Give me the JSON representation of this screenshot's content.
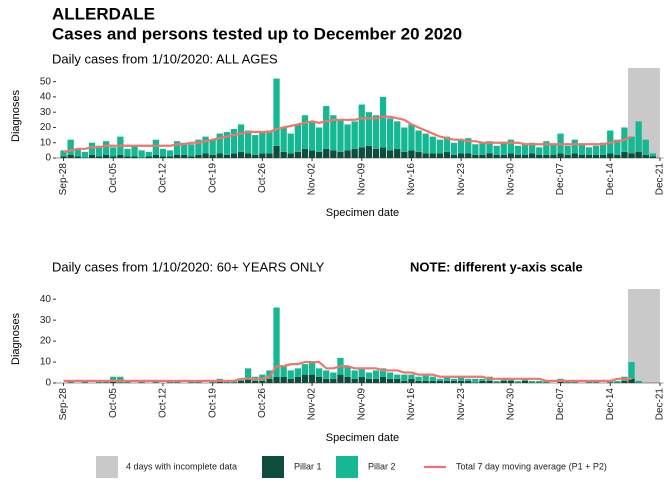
{
  "title": "ALLERDALE",
  "subtitle": "Cases and persons tested up to December 20 2020",
  "chart_data": [
    {
      "type": "bar",
      "stacked": true,
      "title": "Daily cases from 1/10/2020: ALL AGES",
      "xlabel": "Specimen date",
      "ylabel": "Diagnoses",
      "categories": [
        "Sep-28",
        null,
        null,
        null,
        null,
        null,
        null,
        "Oct-05",
        null,
        null,
        null,
        null,
        null,
        null,
        "Oct-12",
        null,
        null,
        null,
        null,
        null,
        null,
        "Oct-19",
        null,
        null,
        null,
        null,
        null,
        null,
        "Oct-26",
        null,
        null,
        null,
        null,
        null,
        null,
        "Nov-02",
        null,
        null,
        null,
        null,
        null,
        null,
        "Nov-09",
        null,
        null,
        null,
        null,
        null,
        null,
        "Nov-16",
        null,
        null,
        null,
        null,
        null,
        null,
        "Nov-23",
        null,
        null,
        null,
        null,
        null,
        null,
        "Nov-30",
        null,
        null,
        null,
        null,
        null,
        null,
        "Dec-07",
        null,
        null,
        null,
        null,
        null,
        null,
        "Dec-14",
        null,
        null,
        null,
        null,
        null,
        null,
        "Dec-21"
      ],
      "series": [
        {
          "name": "Pillar 1",
          "color": "#0e4d3c",
          "values": [
            1,
            2,
            1,
            0,
            2,
            1,
            2,
            1,
            2,
            1,
            1,
            0,
            1,
            2,
            1,
            1,
            2,
            2,
            1,
            2,
            3,
            2,
            3,
            2,
            3,
            4,
            3,
            2,
            3,
            3,
            8,
            4,
            3,
            4,
            6,
            5,
            4,
            6,
            5,
            4,
            5,
            6,
            7,
            8,
            6,
            7,
            5,
            6,
            4,
            5,
            4,
            3,
            3,
            3,
            4,
            2,
            3,
            3,
            2,
            2,
            3,
            2,
            2,
            3,
            2,
            2,
            3,
            2,
            2,
            2,
            3,
            2,
            3,
            2,
            2,
            2,
            2,
            3,
            2,
            4,
            3,
            4,
            2,
            1,
            null
          ]
        },
        {
          "name": "Pillar 2",
          "color": "#16b894",
          "values": [
            4,
            10,
            5,
            4,
            8,
            7,
            9,
            6,
            12,
            5,
            7,
            5,
            3,
            10,
            5,
            4,
            9,
            8,
            8,
            10,
            11,
            10,
            13,
            15,
            16,
            18,
            15,
            13,
            14,
            15,
            44,
            16,
            13,
            18,
            22,
            19,
            16,
            28,
            23,
            21,
            17,
            18,
            28,
            22,
            22,
            33,
            21,
            18,
            16,
            17,
            14,
            13,
            11,
            9,
            10,
            8,
            9,
            10,
            7,
            8,
            8,
            6,
            8,
            9,
            6,
            7,
            7,
            5,
            9,
            7,
            13,
            6,
            9,
            7,
            5,
            6,
            8,
            15,
            10,
            16,
            11,
            20,
            10,
            2,
            null
          ]
        },
        {
          "name": "Total 7 day moving average (P1 + P2)",
          "type": "line",
          "color": "#f2746b",
          "values": [
            4,
            5,
            6,
            6,
            7,
            7,
            8,
            8,
            8,
            8,
            8,
            8,
            8,
            8,
            8,
            8,
            9,
            9,
            10,
            10,
            11,
            12,
            13,
            14,
            15,
            16,
            17,
            17,
            17,
            17,
            19,
            20,
            21,
            22,
            23,
            24,
            23,
            24,
            25,
            25,
            25,
            25,
            26,
            26,
            26,
            27,
            27,
            26,
            25,
            22,
            20,
            18,
            16,
            14,
            13,
            12,
            12,
            11,
            11,
            10,
            10,
            10,
            10,
            10,
            10,
            9,
            9,
            9,
            9,
            9,
            9,
            9,
            9,
            9,
            9,
            9,
            9,
            10,
            11,
            12,
            14,
            null,
            null,
            null,
            null
          ]
        }
      ],
      "ylim": [
        0,
        55
      ],
      "yticks": [
        0,
        10,
        20,
        30,
        40,
        50
      ],
      "grid": false,
      "incomplete": {
        "label": "4 days with incomplete data",
        "days": 4,
        "color": "#c9c9c9"
      }
    },
    {
      "type": "bar",
      "stacked": true,
      "title": "Daily cases from 1/10/2020: 60+ YEARS ONLY",
      "note": "NOTE: different y-axis scale",
      "xlabel": "Specimen date",
      "ylabel": "Diagnoses",
      "categories": [
        "Sep-28",
        null,
        null,
        null,
        null,
        null,
        null,
        "Oct-05",
        null,
        null,
        null,
        null,
        null,
        null,
        "Oct-12",
        null,
        null,
        null,
        null,
        null,
        null,
        "Oct-19",
        null,
        null,
        null,
        null,
        null,
        null,
        "Oct-26",
        null,
        null,
        null,
        null,
        null,
        null,
        "Nov-02",
        null,
        null,
        null,
        null,
        null,
        null,
        "Nov-09",
        null,
        null,
        null,
        null,
        null,
        null,
        "Nov-16",
        null,
        null,
        null,
        null,
        null,
        null,
        "Nov-23",
        null,
        null,
        null,
        null,
        null,
        null,
        "Nov-30",
        null,
        null,
        null,
        null,
        null,
        null,
        "Dec-07",
        null,
        null,
        null,
        null,
        null,
        null,
        "Dec-14",
        null,
        null,
        null,
        null,
        null,
        null,
        "Dec-21"
      ],
      "series": [
        {
          "color": "#0e4d3c",
          "values": [
            0,
            0,
            0,
            0,
            0,
            0,
            0,
            1,
            0,
            0,
            0,
            0,
            0,
            0,
            0,
            0,
            0,
            0,
            0,
            0,
            0,
            0,
            1,
            0,
            0,
            1,
            2,
            1,
            1,
            2,
            3,
            3,
            2,
            3,
            4,
            4,
            3,
            2,
            2,
            4,
            3,
            2,
            3,
            2,
            2,
            3,
            2,
            2,
            1,
            2,
            1,
            1,
            1,
            1,
            1,
            1,
            1,
            1,
            0,
            1,
            1,
            0,
            1,
            1,
            0,
            1,
            0,
            0,
            0,
            0,
            1,
            0,
            0,
            0,
            0,
            0,
            0,
            0,
            0,
            1,
            2,
            0,
            0,
            0,
            null
          ]
        },
        {
          "color": "#16b894",
          "values": [
            0,
            1,
            0,
            1,
            0,
            1,
            1,
            2,
            3,
            1,
            0,
            1,
            0,
            1,
            0,
            1,
            1,
            0,
            1,
            1,
            0,
            1,
            1,
            1,
            1,
            1,
            5,
            2,
            3,
            4,
            33,
            5,
            4,
            4,
            5,
            6,
            4,
            4,
            3,
            8,
            5,
            4,
            4,
            3,
            4,
            4,
            3,
            2,
            3,
            2,
            2,
            3,
            2,
            1,
            2,
            1,
            2,
            1,
            2,
            1,
            2,
            1,
            1,
            1,
            1,
            1,
            1,
            1,
            1,
            0,
            1,
            1,
            1,
            0,
            1,
            1,
            0,
            1,
            1,
            2,
            8,
            1,
            0,
            0,
            null
          ]
        },
        {
          "type": "line",
          "color": "#f2746b",
          "values": [
            1,
            1,
            1,
            1,
            1,
            1,
            1,
            1,
            1,
            1,
            1,
            1,
            1,
            1,
            1,
            1,
            1,
            1,
            1,
            1,
            1,
            1,
            1,
            1,
            1,
            2,
            2,
            2,
            2,
            3,
            8,
            8,
            9,
            9,
            10,
            10,
            10,
            7,
            7,
            8,
            8,
            7,
            7,
            7,
            7,
            6,
            6,
            6,
            5,
            5,
            4,
            4,
            4,
            3,
            3,
            3,
            3,
            3,
            3,
            3,
            2,
            2,
            2,
            2,
            2,
            2,
            2,
            2,
            1,
            1,
            1,
            1,
            1,
            1,
            1,
            1,
            1,
            1,
            2,
            2,
            2,
            null,
            null,
            null,
            null
          ]
        }
      ],
      "ylim": [
        0,
        42
      ],
      "yticks": [
        0,
        10,
        20,
        30,
        40
      ],
      "grid": false,
      "incomplete": {
        "days": 4,
        "color": "#c9c9c9"
      }
    }
  ]
}
